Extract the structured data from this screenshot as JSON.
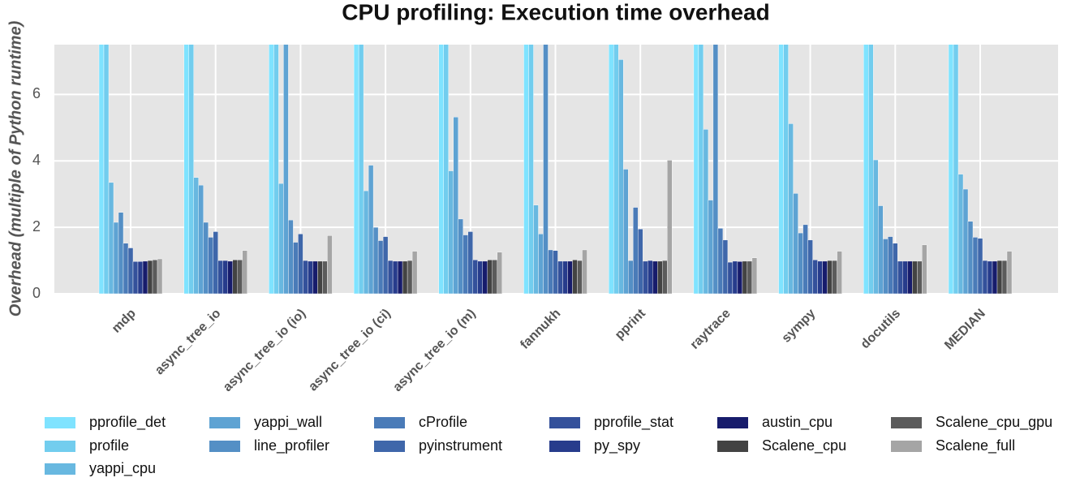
{
  "chart_data": {
    "type": "bar",
    "title": "CPU profiling: Execution time overhead",
    "y_label": "Overhead (multiple of Python runtime)",
    "categories": [
      "mdp",
      "async_tree_io",
      "async_tree_io (io)",
      "async_tree_io (ci)",
      "async_tree_io (m)",
      "fannukh",
      "pprint",
      "raytrace",
      "sympy",
      "docutils",
      "MEDIAN"
    ],
    "ylim": [
      0,
      7.5
    ],
    "yticks": [
      0,
      2,
      4,
      6
    ],
    "grid": true,
    "series": [
      {
        "name": "pprofile_det",
        "color": "#7fe3ff",
        "values": [
          8,
          8,
          8,
          8,
          8,
          8,
          8,
          8,
          8,
          8,
          8
        ]
      },
      {
        "name": "profile",
        "color": "#72cdee",
        "values": [
          8,
          8,
          8,
          8,
          8,
          8,
          8,
          8,
          8,
          8,
          8
        ]
      },
      {
        "name": "yappi_cpu",
        "color": "#68b8e0",
        "values": [
          3.35,
          3.5,
          3.32,
          3.1,
          3.7,
          2.67,
          7.05,
          4.95,
          5.12,
          4.03,
          3.6
        ]
      },
      {
        "name": "yappi_wall",
        "color": "#5ea3d3",
        "values": [
          2.15,
          3.27,
          8,
          3.87,
          5.32,
          1.8,
          3.75,
          2.82,
          3.02,
          2.65,
          3.15
        ]
      },
      {
        "name": "line_profiler",
        "color": "#548fc5",
        "values": [
          2.45,
          2.15,
          2.22,
          2.0,
          2.25,
          8,
          1.0,
          8,
          1.83,
          1.65,
          2.18
        ]
      },
      {
        "name": "cProfile",
        "color": "#4a7bb8",
        "values": [
          1.52,
          1.7,
          1.55,
          1.6,
          1.77,
          1.32,
          2.6,
          1.97,
          2.08,
          1.72,
          1.7
        ]
      },
      {
        "name": "pyinstrument",
        "color": "#3f67aa",
        "values": [
          1.38,
          1.87,
          1.8,
          1.72,
          1.87,
          1.3,
          1.95,
          1.62,
          1.62,
          1.52,
          1.67
        ]
      },
      {
        "name": "pprofile_stat",
        "color": "#34519b",
        "values": [
          0.97,
          1.0,
          1.0,
          1.0,
          1.02,
          0.98,
          0.98,
          0.95,
          1.02,
          0.98,
          1.0
        ]
      },
      {
        "name": "py_spy",
        "color": "#273c8c",
        "values": [
          0.97,
          1.0,
          0.98,
          0.98,
          0.98,
          0.98,
          1.0,
          0.98,
          0.98,
          0.98,
          0.98
        ]
      },
      {
        "name": "austin_cpu",
        "color": "#171c6c",
        "values": [
          0.98,
          0.98,
          0.98,
          0.98,
          0.98,
          0.98,
          0.98,
          0.97,
          0.98,
          0.98,
          0.98
        ]
      },
      {
        "name": "Scalene_cpu",
        "color": "#434343",
        "values": [
          1.0,
          1.02,
          0.98,
          0.98,
          1.02,
          1.02,
          0.98,
          0.98,
          1.0,
          0.98,
          1.0
        ]
      },
      {
        "name": "Scalene_cpu_gpu",
        "color": "#5b5b5b",
        "values": [
          1.02,
          1.02,
          0.98,
          1.0,
          1.02,
          1.0,
          1.0,
          0.98,
          1.0,
          0.98,
          1.0
        ]
      },
      {
        "name": "Scalene_full",
        "color": "#a5a5a5",
        "values": [
          1.05,
          1.3,
          1.75,
          1.28,
          1.25,
          1.32,
          4.02,
          1.08,
          1.28,
          1.47,
          1.28
        ]
      }
    ]
  }
}
